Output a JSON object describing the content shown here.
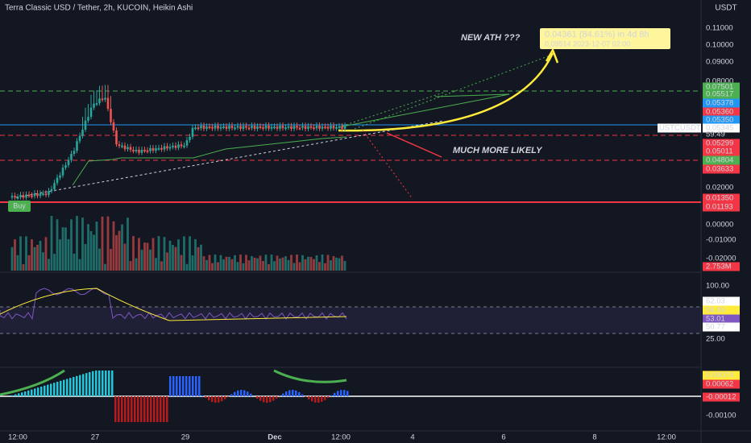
{
  "header": {
    "title": "Terra Classic USD / Tether, 2h, KUCOIN, Heikin Ashi",
    "currency": "USDT"
  },
  "price_axis": [
    "0.11000",
    "0.10000",
    "0.09000",
    "0.08000",
    "0.07501",
    "0.05517",
    "0.05378",
    "0.05360",
    "0.05350",
    "0.05345",
    "59:49",
    "0.05299",
    "0.05011",
    "0.04804",
    "0.03633",
    "0.02000",
    "0.01350",
    "0.01193",
    "0.00000",
    "-0.01000",
    "-0.02000",
    "2.753M"
  ],
  "symbol_tag": "USTCUSDT",
  "rsi_axis": [
    "100.00",
    "62.03",
    "56.09",
    "53.01",
    "50.77",
    "25.00"
  ],
  "macd_axis": [
    "0.00074",
    "0.00062",
    "-0.00012",
    "-0.00100"
  ],
  "time_axis": [
    "12:00",
    "27",
    "29",
    "Dec",
    "12:00",
    "4",
    "6",
    "8",
    "12:00"
  ],
  "annotations": {
    "ath": "NEW ATH ???",
    "likely": "MUCH MORE LIKELY",
    "buy": "Buy",
    "measure_main": "0.04361 (84.61%) in 4d 8h",
    "measure_sub": "0.09514   2023-12-07  02:00"
  }
}
